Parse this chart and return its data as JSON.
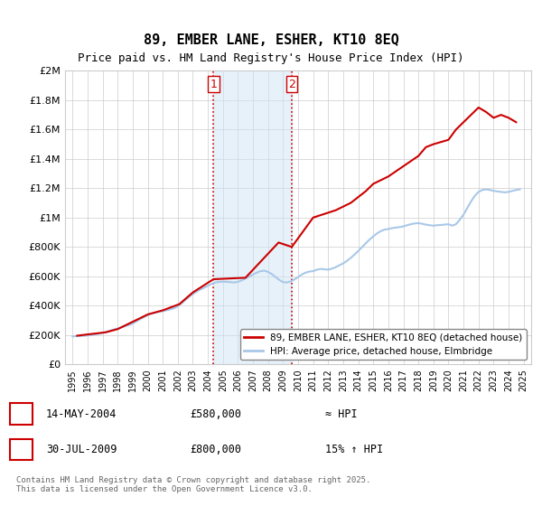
{
  "title": "89, EMBER LANE, ESHER, KT10 8EQ",
  "subtitle": "Price paid vs. HM Land Registry's House Price Index (HPI)",
  "ylabel": "",
  "xlabel": "",
  "background_color": "#ffffff",
  "grid_color": "#cccccc",
  "ylim": [
    0,
    2000000
  ],
  "yticks": [
    0,
    200000,
    400000,
    600000,
    800000,
    1000000,
    1200000,
    1400000,
    1600000,
    1800000,
    2000000
  ],
  "ytick_labels": [
    "£0",
    "£200K",
    "£400K",
    "£600K",
    "£800K",
    "£1M",
    "£1.2M",
    "£1.4M",
    "£1.6M",
    "£1.8M",
    "£2M"
  ],
  "transactions": [
    {
      "date": "14-MAY-2004",
      "price": 580000,
      "vs_hpi": "≈ HPI",
      "label": "1"
    },
    {
      "date": "30-JUL-2009",
      "price": 800000,
      "vs_hpi": "15% ↑ HPI",
      "label": "2"
    }
  ],
  "event1_date_num": 2004.37,
  "event2_date_num": 2009.58,
  "red_line_color": "#cc0000",
  "blue_line_color": "#a8c8e8",
  "legend_label_red": "89, EMBER LANE, ESHER, KT10 8EQ (detached house)",
  "legend_label_blue": "HPI: Average price, detached house, Elmbridge",
  "footer": "Contains HM Land Registry data © Crown copyright and database right 2025.\nThis data is licensed under the Open Government Licence v3.0.",
  "hpi_data": {
    "years": [
      1995.0,
      1995.25,
      1995.5,
      1995.75,
      1996.0,
      1996.25,
      1996.5,
      1996.75,
      1997.0,
      1997.25,
      1997.5,
      1997.75,
      1998.0,
      1998.25,
      1998.5,
      1998.75,
      1999.0,
      1999.25,
      1999.5,
      1999.75,
      2000.0,
      2000.25,
      2000.5,
      2000.75,
      2001.0,
      2001.25,
      2001.5,
      2001.75,
      2002.0,
      2002.25,
      2002.5,
      2002.75,
      2003.0,
      2003.25,
      2003.5,
      2003.75,
      2004.0,
      2004.25,
      2004.5,
      2004.75,
      2005.0,
      2005.25,
      2005.5,
      2005.75,
      2006.0,
      2006.25,
      2006.5,
      2006.75,
      2007.0,
      2007.25,
      2007.5,
      2007.75,
      2008.0,
      2008.25,
      2008.5,
      2008.75,
      2009.0,
      2009.25,
      2009.5,
      2009.75,
      2010.0,
      2010.25,
      2010.5,
      2010.75,
      2011.0,
      2011.25,
      2011.5,
      2011.75,
      2012.0,
      2012.25,
      2012.5,
      2012.75,
      2013.0,
      2013.25,
      2013.5,
      2013.75,
      2014.0,
      2014.25,
      2014.5,
      2014.75,
      2015.0,
      2015.25,
      2015.5,
      2015.75,
      2016.0,
      2016.25,
      2016.5,
      2016.75,
      2017.0,
      2017.25,
      2017.5,
      2017.75,
      2018.0,
      2018.25,
      2018.5,
      2018.75,
      2019.0,
      2019.25,
      2019.5,
      2019.75,
      2020.0,
      2020.25,
      2020.5,
      2020.75,
      2021.0,
      2021.25,
      2021.5,
      2021.75,
      2022.0,
      2022.25,
      2022.5,
      2022.75,
      2023.0,
      2023.25,
      2023.5,
      2023.75,
      2024.0,
      2024.25,
      2024.5,
      2024.75
    ],
    "values": [
      190000,
      192000,
      193000,
      195000,
      197000,
      200000,
      204000,
      208000,
      215000,
      222000,
      230000,
      238000,
      245000,
      252000,
      260000,
      268000,
      278000,
      292000,
      308000,
      322000,
      335000,
      345000,
      352000,
      358000,
      362000,
      368000,
      375000,
      382000,
      395000,
      415000,
      438000,
      460000,
      478000,
      495000,
      510000,
      522000,
      535000,
      548000,
      558000,
      562000,
      563000,
      562000,
      560000,
      558000,
      562000,
      572000,
      585000,
      598000,
      612000,
      625000,
      635000,
      638000,
      630000,
      615000,
      595000,
      575000,
      560000,
      558000,
      565000,
      578000,
      595000,
      612000,
      625000,
      632000,
      635000,
      645000,
      650000,
      648000,
      645000,
      652000,
      662000,
      675000,
      688000,
      705000,
      725000,
      748000,
      772000,
      798000,
      825000,
      850000,
      872000,
      892000,
      908000,
      918000,
      922000,
      928000,
      932000,
      935000,
      940000,
      948000,
      955000,
      960000,
      962000,
      958000,
      952000,
      948000,
      945000,
      948000,
      950000,
      952000,
      955000,
      945000,
      955000,
      985000,
      1020000,
      1065000,
      1110000,
      1148000,
      1175000,
      1188000,
      1192000,
      1188000,
      1182000,
      1178000,
      1175000,
      1172000,
      1175000,
      1182000,
      1188000,
      1192000
    ]
  },
  "price_paid_data": {
    "years": [
      1995.3,
      1996.1,
      1997.2,
      1998.0,
      1999.1,
      2000.0,
      2001.0,
      2002.1,
      2003.0,
      2004.37,
      2006.5,
      2008.7,
      2009.58,
      2011.0,
      2012.5,
      2013.5,
      2014.5,
      2015.0,
      2016.0,
      2017.0,
      2018.0,
      2018.5,
      2019.0,
      2020.0,
      2020.5,
      2021.0,
      2021.5,
      2022.0,
      2022.5,
      2023.0,
      2023.5,
      2024.0,
      2024.5
    ],
    "values": [
      195000,
      205000,
      218000,
      240000,
      295000,
      340000,
      368000,
      410000,
      490000,
      580000,
      590000,
      830000,
      800000,
      1000000,
      1050000,
      1100000,
      1180000,
      1230000,
      1280000,
      1350000,
      1420000,
      1480000,
      1500000,
      1530000,
      1600000,
      1650000,
      1700000,
      1750000,
      1720000,
      1680000,
      1700000,
      1680000,
      1650000
    ]
  }
}
